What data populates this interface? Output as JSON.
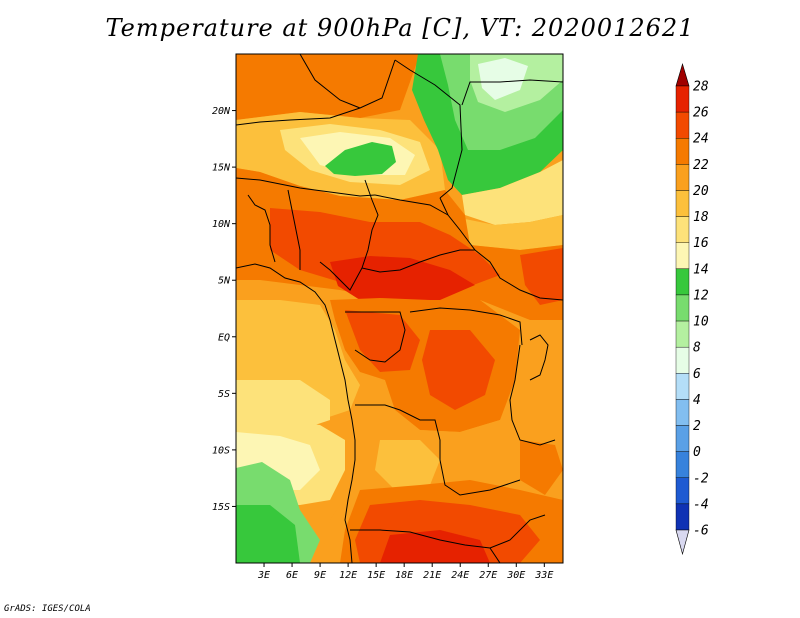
{
  "title": "Temperature at 900hPa [C], VT: 2020012621",
  "credit": "GrADS: IGES/COLA",
  "map": {
    "lon_range": [
      0,
      35
    ],
    "lat_range": [
      -20,
      25
    ],
    "lat_ticks": [
      {
        "value": 20,
        "label": "20N"
      },
      {
        "value": 15,
        "label": "15N"
      },
      {
        "value": 10,
        "label": "10N"
      },
      {
        "value": 5,
        "label": "5N"
      },
      {
        "value": 0,
        "label": "EQ"
      },
      {
        "value": -5,
        "label": "5S"
      },
      {
        "value": -10,
        "label": "10S"
      },
      {
        "value": -15,
        "label": "15S"
      }
    ],
    "lon_ticks": [
      {
        "value": 3,
        "label": "3E"
      },
      {
        "value": 6,
        "label": "6E"
      },
      {
        "value": 9,
        "label": "9E"
      },
      {
        "value": 12,
        "label": "12E"
      },
      {
        "value": 15,
        "label": "15E"
      },
      {
        "value": 18,
        "label": "18E"
      },
      {
        "value": 21,
        "label": "21E"
      },
      {
        "value": 24,
        "label": "24E"
      },
      {
        "value": 27,
        "label": "27E"
      },
      {
        "value": 30,
        "label": "30E"
      },
      {
        "value": 33,
        "label": "33E"
      }
    ]
  },
  "colorbar": {
    "levels": [
      "28",
      "26",
      "24",
      "22",
      "20",
      "18",
      "16",
      "14",
      "12",
      "10",
      "8",
      "6",
      "4",
      "2",
      "0",
      "-2",
      "-4",
      "-6"
    ],
    "colors": [
      "#e62200",
      "#f24a00",
      "#f57a00",
      "#faa01e",
      "#fcc03c",
      "#fde27a",
      "#fdf6b4",
      "#37c83c",
      "#78dc6e",
      "#b4f0a0",
      "#e6fde6",
      "#b4def8",
      "#82bef0",
      "#5aa0e6",
      "#3782dc",
      "#1e5ad2",
      "#0f32b4",
      "#000a78"
    ],
    "top_arrow_color": "#a00000",
    "bottom_arrow_color": "#d8d8f0"
  }
}
